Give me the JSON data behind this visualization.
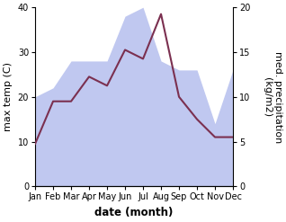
{
  "months": [
    "Jan",
    "Feb",
    "Mar",
    "Apr",
    "May",
    "Jun",
    "Jul",
    "Aug",
    "Sep",
    "Oct",
    "Nov",
    "Dec"
  ],
  "temperature": [
    9.5,
    19.0,
    19.0,
    24.5,
    22.5,
    30.5,
    28.5,
    38.5,
    20.0,
    15.0,
    11.0,
    11.0
  ],
  "precipitation": [
    10.0,
    11.0,
    14.0,
    14.0,
    14.0,
    19.0,
    20.0,
    14.0,
    13.0,
    13.0,
    7.0,
    13.0
  ],
  "temp_color": "#7b3050",
  "precip_color": "#c0c8f0",
  "ylabel_left": "max temp (C)",
  "ylabel_right": "med. precipitation\n(kg/m2)",
  "xlabel": "date (month)",
  "ylim_left": [
    0,
    40
  ],
  "ylim_right": [
    0,
    20
  ],
  "yticks_left": [
    0,
    10,
    20,
    30,
    40
  ],
  "yticks_right": [
    0,
    5,
    10,
    15,
    20
  ],
  "axis_fontsize": 8,
  "tick_fontsize": 7,
  "xlabel_fontsize": 8.5
}
